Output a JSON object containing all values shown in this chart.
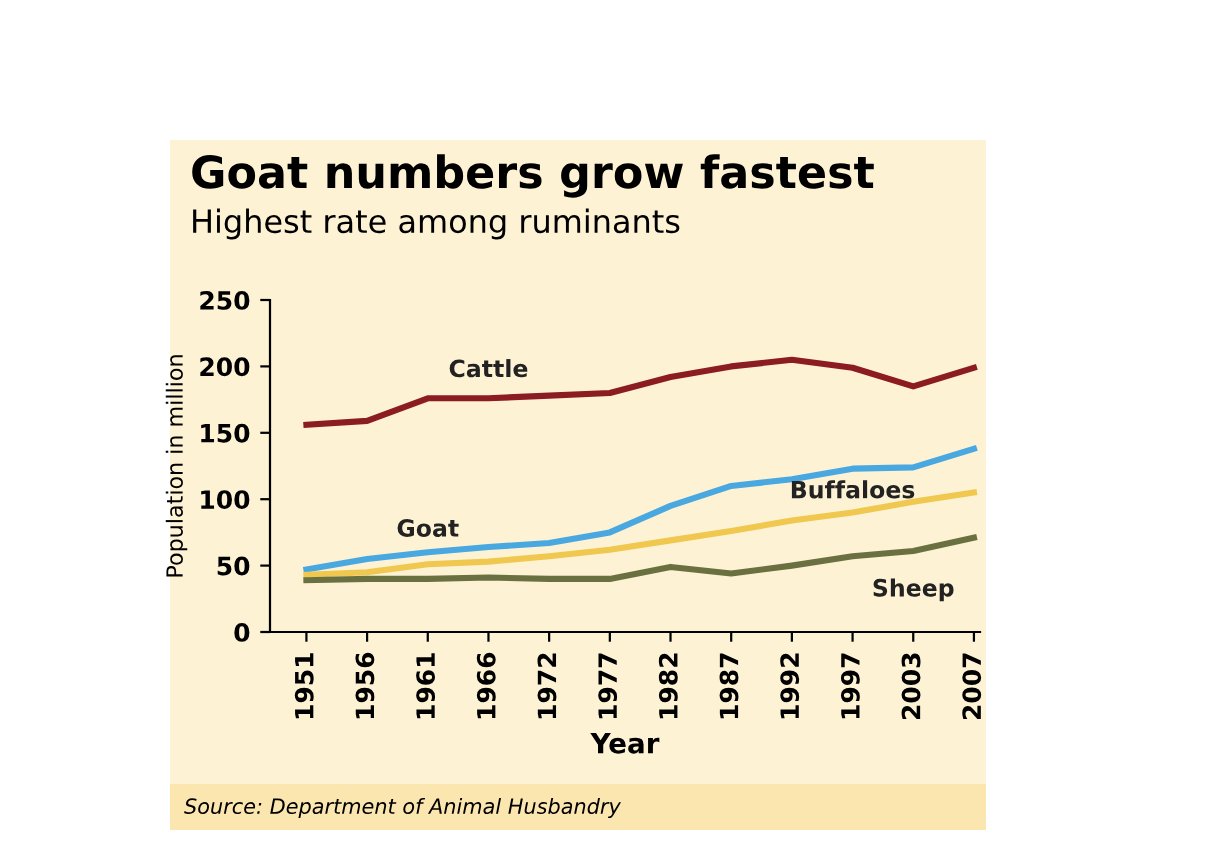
{
  "chart_data": {
    "type": "line",
    "title": "Goat numbers grow fastest",
    "subtitle": "Highest rate among ruminants",
    "xlabel": "Year",
    "ylabel": "Population in million",
    "categories": [
      "1951",
      "1956",
      "1961",
      "1966",
      "1972",
      "1977",
      "1982",
      "1987",
      "1992",
      "1997",
      "2003",
      "2007"
    ],
    "series": [
      {
        "name": "Cattle",
        "color": "#8b1c22",
        "values": [
          156,
          159,
          176,
          176,
          178,
          180,
          192,
          200,
          205,
          199,
          185,
          199
        ]
      },
      {
        "name": "Goat",
        "color": "#4aa8e0",
        "values": [
          47,
          55,
          60,
          64,
          67,
          75,
          95,
          110,
          115,
          123,
          124,
          138
        ]
      },
      {
        "name": "Buffaloes",
        "color": "#f0c850",
        "values": [
          43,
          45,
          51,
          53,
          57,
          62,
          69,
          76,
          84,
          90,
          98,
          105
        ]
      },
      {
        "name": "Sheep",
        "color": "#6b7040",
        "values": [
          39,
          40,
          40,
          41,
          40,
          40,
          49,
          44,
          50,
          57,
          61,
          71
        ]
      }
    ],
    "ylim": [
      0,
      250
    ],
    "yticks": [
      0,
      50,
      100,
      150,
      200,
      250
    ],
    "grid": false,
    "legend": false,
    "marker": "none",
    "line_style": "solid",
    "annotations": [
      "Source: Department of Animal Husbandry"
    ]
  }
}
